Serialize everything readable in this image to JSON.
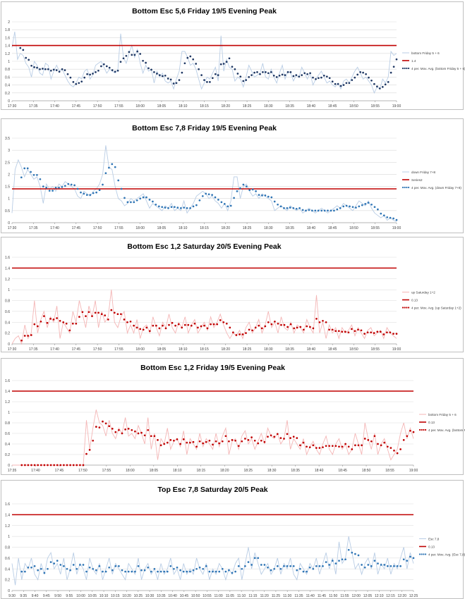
{
  "chart_data": [
    {
      "type": "line",
      "title": "Bottom Esc 5,6 Friday 19/5 Evening Peak",
      "ylim": [
        0,
        2
      ],
      "yticks": [
        "0",
        "0.2",
        "0.4",
        "0.6",
        "0.8",
        "1",
        "1.2",
        "1.4",
        "1.6",
        "1.8",
        "2"
      ],
      "xticks": [
        "17:30",
        "17:35",
        "17:40",
        "17:45",
        "17:50",
        "17:55",
        "18:00",
        "18:05",
        "18:10",
        "18:15",
        "18:20",
        "18:25",
        "18:30",
        "18:35",
        "18:40",
        "18:45",
        "18:50",
        "18:55",
        "19:00"
      ],
      "threshold": 1.4,
      "legend": [
        "bottom Friday 5 + 6",
        "1.4",
        "4 per. Mov. Avg. (bottom Friday 5 + 6)"
      ],
      "colors": {
        "raw": "#b9cde5",
        "avg": "#1f3864",
        "threshold": "#c00000"
      },
      "series_raw": [
        1.35,
        1.75,
        1.05,
        1.2,
        1.15,
        0.95,
        0.85,
        0.6,
        1.0,
        0.9,
        0.7,
        0.65,
        0.95,
        0.9,
        0.55,
        0.75,
        0.9,
        0.75,
        0.8,
        0.65,
        0.5,
        0.4,
        0.35,
        0.45,
        0.6,
        0.55,
        0.75,
        0.8,
        0.55,
        0.65,
        0.9,
        0.95,
        1.0,
        0.85,
        0.7,
        0.8,
        0.75,
        0.7,
        0.8,
        1.7,
        1.1,
        0.95,
        1.2,
        1.4,
        1.1,
        1.3,
        0.95,
        0.7,
        0.9,
        0.75,
        0.8,
        0.45,
        0.75,
        0.6,
        0.7,
        0.5,
        0.45,
        0.5,
        0.3,
        0.55,
        0.75,
        1.25,
        1.25,
        1.1,
        0.9,
        0.95,
        0.8,
        0.55,
        0.3,
        0.45,
        0.6,
        0.55,
        0.7,
        0.85,
        0.5,
        1.65,
        0.75,
        1.05,
        0.85,
        0.8,
        0.5,
        0.6,
        0.55,
        0.35,
        0.6,
        0.9,
        0.75,
        0.6,
        0.65,
        0.7,
        0.95,
        0.6,
        0.55,
        0.8,
        0.6,
        0.45,
        0.7,
        0.9,
        0.55,
        0.75,
        0.7,
        0.5,
        0.65,
        0.6,
        0.85,
        0.7,
        0.55,
        0.7,
        0.4,
        0.55,
        0.65,
        0.75,
        0.6,
        0.45,
        0.5,
        0.4,
        0.35,
        0.45,
        0.3,
        0.5,
        0.55,
        0.45,
        0.6,
        0.75,
        0.85,
        0.7,
        0.55,
        0.6,
        0.5,
        0.4,
        0.2,
        0.35,
        0.3,
        0.55,
        0.45,
        0.6,
        1.25,
        1.15,
        1.2
      ]
    },
    {
      "type": "line",
      "title": "Bottom Esc 7,8 Friday 19/5 Evening Peak",
      "ylim": [
        0,
        3.5
      ],
      "yticks": [
        "0",
        "0.5",
        "1",
        "1.5",
        "2",
        "2.5",
        "3",
        "3.5"
      ],
      "xticks": [
        "17:30",
        "17:35",
        "17:40",
        "17:45",
        "17:50",
        "17:55",
        "18:00",
        "18:05",
        "18:10",
        "18:15",
        "18:20",
        "18:25",
        "18:30",
        "18:35",
        "18:40",
        "18:45",
        "18:50",
        "18:55",
        "19:00"
      ],
      "threshold": 1.4,
      "legend": [
        "down Friday 7+8",
        "Series2",
        "4 per. Mov. Avg. (down Friday 7+8)"
      ],
      "colors": {
        "raw": "#b9cde5",
        "avg": "#2f75b5",
        "threshold": "#c00000"
      },
      "series_raw": [
        0.4,
        2.2,
        2.6,
        2.3,
        1.9,
        2.2,
        2.0,
        1.8,
        1.9,
        1.5,
        0.8,
        1.6,
        1.4,
        1.5,
        1.3,
        1.6,
        1.5,
        1.7,
        1.6,
        1.5,
        1.4,
        1.1,
        1.0,
        1.3,
        1.2,
        1.1,
        1.3,
        1.4,
        1.6,
        2.0,
        3.2,
        2.3,
        2.2,
        1.5,
        1.0,
        0.9,
        0.7,
        0.8,
        1.0,
        0.9,
        1.0,
        1.1,
        1.2,
        0.9,
        0.6,
        0.8,
        0.7,
        0.6,
        0.5,
        0.7,
        0.6,
        0.8,
        0.5,
        0.6,
        0.5,
        0.9,
        0.4,
        0.6,
        0.8,
        1.1,
        1.2,
        1.3,
        1.2,
        1.0,
        1.1,
        0.9,
        0.8,
        0.6,
        0.8,
        0.5,
        0.9,
        1.9,
        1.9,
        1.0,
        1.5,
        1.6,
        1.3,
        1.1,
        1.2,
        1.0,
        1.2,
        1.1,
        1.0,
        0.9,
        0.5,
        0.6,
        0.7,
        0.6,
        0.5,
        0.7,
        0.6,
        0.5,
        0.6,
        0.4,
        0.5,
        0.6,
        0.5,
        0.4,
        0.5,
        0.6,
        0.5,
        0.4,
        0.5,
        0.6,
        0.7,
        0.6,
        0.8,
        0.7,
        0.6,
        0.5,
        0.7,
        0.9,
        0.8,
        0.7,
        0.9,
        0.6,
        0.4,
        0.3,
        0.2,
        0.3,
        0.1,
        0.2,
        0.1,
        0.05
      ]
    },
    {
      "type": "line",
      "title": "Bottom Esc 1,2 Saturday 20/5 Evening Peak",
      "ylim": [
        0,
        1.6
      ],
      "yticks": [
        "0",
        "0.2",
        "0.4",
        "0.6",
        "0.8",
        "1",
        "1.2",
        "1.4",
        "1.6"
      ],
      "xticks": [
        "17:30",
        "17:35",
        "17:40",
        "17:45",
        "17:50",
        "17:55",
        "18:00",
        "18:05",
        "18:10",
        "18:15",
        "18:20",
        "18:25",
        "18:30",
        "18:35",
        "18:40",
        "18:45",
        "18:50",
        "18:55",
        "19:00"
      ],
      "threshold": 1.4,
      "legend": [
        "up Saturday 1+2",
        "0.13",
        "4 per. Mov. Avg. (up Saturday 1+2)"
      ],
      "colors": {
        "raw": "#f4b6b6",
        "avg": "#c00000",
        "threshold": "#c00000"
      },
      "series_raw": [
        0.0,
        0.1,
        0.15,
        0.0,
        0.35,
        0.1,
        0.2,
        0.8,
        0.2,
        0.45,
        0.6,
        0.3,
        0.5,
        0.4,
        0.7,
        0.1,
        0.4,
        0.3,
        0.2,
        0.6,
        0.4,
        0.8,
        0.55,
        0.3,
        0.7,
        0.5,
        0.8,
        0.3,
        0.6,
        0.4,
        0.5,
        1.0,
        0.4,
        0.3,
        0.5,
        0.6,
        0.2,
        0.35,
        0.2,
        0.45,
        0.1,
        0.3,
        0.35,
        0.2,
        0.5,
        0.3,
        0.15,
        0.4,
        0.3,
        0.55,
        0.3,
        0.2,
        0.4,
        0.3,
        0.5,
        0.2,
        0.35,
        0.45,
        0.2,
        0.3,
        0.4,
        0.25,
        0.5,
        0.3,
        0.4,
        0.55,
        0.35,
        0.2,
        0.1,
        0.2,
        0.15,
        0.25,
        0.1,
        0.3,
        0.4,
        0.2,
        0.3,
        0.45,
        0.2,
        0.35,
        0.6,
        0.3,
        0.4,
        0.2,
        0.5,
        0.3,
        0.25,
        0.4,
        0.2,
        0.35,
        0.3,
        0.2,
        0.45,
        0.3,
        0.2,
        0.9,
        0.2,
        0.4,
        0.1,
        0.35,
        0.2,
        0.3,
        0.1,
        0.3,
        0.2,
        0.25,
        0.35,
        0.15,
        0.3,
        0.2,
        0.1,
        0.25,
        0.3,
        0.15,
        0.2,
        0.25,
        0.1,
        0.3,
        0.2,
        0.15,
        0.1
      ]
    },
    {
      "type": "line",
      "title": "Bottom Esc 1,2 Friday 19/5 Evening Peak",
      "ylim": [
        0,
        1.6
      ],
      "yticks": [
        "0",
        "0.2",
        "0.4",
        "0.6",
        "0.8",
        "1",
        "1.2",
        "1.4",
        "1.6"
      ],
      "xticks": [
        "17:35",
        "17:40",
        "17:45",
        "17:50",
        "17:55",
        "18:00",
        "18:05",
        "18:10",
        "18:15",
        "18:20",
        "18:25",
        "18:30",
        "18:35",
        "18:40",
        "18:45",
        "18:50",
        "18:55",
        "19:00"
      ],
      "threshold": 1.4,
      "legend": [
        "bottom Friday 5 + 6",
        "0.13",
        "4 per. Mov. Avg. (bottom Friday 5 + 6)"
      ],
      "colors": {
        "raw": "#f4b6b6",
        "avg": "#c00000",
        "threshold": "#c00000"
      },
      "series_raw": [
        0,
        0,
        0,
        0,
        0,
        0,
        0,
        0,
        0,
        0,
        0,
        0,
        0,
        0,
        0,
        0,
        0,
        0,
        0,
        0,
        0,
        0,
        0,
        0.85,
        0.3,
        0.7,
        1.05,
        0.8,
        0.75,
        0.55,
        0.85,
        0.6,
        0.5,
        0.7,
        0.6,
        0.9,
        0.55,
        0.6,
        0.5,
        0.75,
        0.6,
        0.4,
        0.9,
        0.3,
        0.6,
        0.1,
        0.5,
        0.4,
        0.7,
        0.3,
        0.45,
        0.5,
        0.35,
        0.65,
        0.2,
        0.5,
        0.4,
        0.3,
        0.6,
        0.35,
        0.5,
        0.4,
        0.3,
        0.6,
        0.35,
        0.55,
        0.7,
        0.2,
        0.45,
        0.5,
        0.3,
        0.55,
        0.65,
        0.4,
        0.5,
        0.3,
        0.45,
        0.6,
        0.4,
        0.7,
        0.55,
        0.5,
        0.6,
        0.4,
        0.5,
        0.85,
        0.3,
        0.5,
        0.4,
        0.3,
        0.5,
        0.2,
        0.35,
        0.45,
        0.3,
        0.2,
        0.4,
        0.55,
        0.3,
        0.2,
        0.4,
        0.5,
        0.3,
        0.4,
        0.2,
        0.3,
        0.6,
        0.4,
        0.2,
        0.8,
        0.5,
        0.3,
        0.6,
        0.2,
        0.4,
        0.5,
        0.3,
        0.1,
        0.2,
        0.3,
        0.6,
        0.8,
        0.5,
        0.7,
        0.5
      ]
    },
    {
      "type": "line",
      "title": "Top Esc 7,8 Saturday 20/5 Peak",
      "ylim": [
        0,
        1.6
      ],
      "yticks": [
        "0",
        "0.2",
        "0.4",
        "0.6",
        "0.8",
        "1",
        "1.2",
        "1.4",
        "1.6"
      ],
      "xticks": [
        "9:30",
        "9:35",
        "9:40",
        "9:45",
        "9:50",
        "9:55",
        "10:00",
        "10:05",
        "10:10",
        "10:15",
        "10:20",
        "10:25",
        "10:30",
        "10:35",
        "10:40",
        "10:45",
        "10:50",
        "10:55",
        "11:00",
        "11:05",
        "11:10",
        "11:15",
        "11:20",
        "11:25",
        "11:30",
        "11:35",
        "11:40",
        "11:45",
        "11:50",
        "11:55",
        "12:00",
        "12:05",
        "12:10",
        "12:15",
        "12:20",
        "12:25"
      ],
      "threshold": 1.4,
      "legend": [
        "Esc 7,8",
        "0.13",
        "4 per. Mov. Avg. (Esc 7,8)"
      ],
      "colors": {
        "raw": "#b9cde5",
        "avg": "#2f75b5",
        "threshold": "#c00000"
      },
      "series_raw": [
        0.5,
        0.1,
        0.6,
        0.2,
        0.5,
        0.4,
        0.6,
        0.3,
        0.2,
        0.5,
        0.3,
        0.6,
        0.7,
        0.4,
        0.5,
        0.3,
        0.6,
        0.2,
        0.4,
        0.7,
        0.3,
        0.5,
        0.4,
        0.2,
        0.6,
        0.4,
        0.3,
        0.5,
        0.2,
        0.4,
        0.6,
        0.3,
        0.5,
        0.4,
        0.3,
        0.2,
        0.5,
        0.4,
        0.3,
        0.6,
        0.2,
        0.4,
        0.5,
        0.3,
        0.4,
        0.2,
        0.5,
        0.3,
        0.4,
        0.6,
        0.3,
        0.4,
        0.2,
        0.5,
        0.3,
        0.4,
        0.3,
        0.6,
        0.4,
        0.3,
        0.5,
        0.2,
        0.4,
        0.3,
        0.5,
        0.4,
        0.2,
        0.4,
        0.3,
        0.5,
        0.6,
        0.2,
        0.5,
        0.8,
        0.4,
        0.7,
        0.5,
        0.3,
        0.4,
        0.5,
        0.3,
        0.4,
        0.6,
        0.3,
        0.5,
        0.4,
        0.6,
        0.3,
        0.2,
        0.5,
        0.4,
        0.3,
        0.5,
        0.4,
        0.6,
        0.3,
        0.5,
        0.7,
        0.4,
        0.6,
        0.3,
        0.9,
        0.5,
        0.6,
        1.0,
        0.7,
        0.4,
        0.5,
        0.3,
        0.5,
        0.6,
        0.4,
        0.7,
        0.3,
        0.5,
        0.4,
        0.6,
        0.3,
        0.5,
        0.4,
        0.6,
        0.8,
        0.4,
        0.7,
        0.5
      ]
    }
  ]
}
